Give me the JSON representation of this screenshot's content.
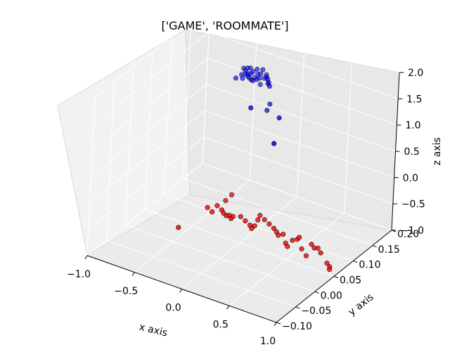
{
  "chart_data": {
    "type": "scatter",
    "projection": "3d",
    "title": "['GAME', 'ROOMMATE']",
    "xlabel": "x axis",
    "ylabel": "y axis",
    "zlabel": "z axis",
    "xlim": [
      -1.0,
      1.0
    ],
    "ylim": [
      -0.1,
      0.2
    ],
    "zlim": [
      -1.0,
      2.0
    ],
    "xticks": [
      "−1.0",
      "−0.5",
      "0.0",
      "0.5",
      "1.0"
    ],
    "yticks": [
      "−0.10",
      "−0.05",
      "0.00",
      "0.05",
      "0.10",
      "0.15",
      "0.20"
    ],
    "zticks": [
      "−1.0",
      "−0.5",
      "0.0",
      "0.5",
      "1.0",
      "1.5",
      "2.0"
    ],
    "grid": true,
    "legend": "none",
    "series": [
      {
        "color": "#0000ff",
        "points": [
          {
            "x": -0.62,
            "y": 0.2,
            "z": 1.05
          },
          {
            "x": -0.6,
            "y": 0.2,
            "z": 1.02
          },
          {
            "x": -0.58,
            "y": 0.2,
            "z": 1.08
          },
          {
            "x": -0.57,
            "y": 0.2,
            "z": 0.98
          },
          {
            "x": -0.55,
            "y": 0.2,
            "z": 1.1
          },
          {
            "x": -0.54,
            "y": 0.2,
            "z": 1.0
          },
          {
            "x": -0.52,
            "y": 0.2,
            "z": 1.05
          },
          {
            "x": -0.5,
            "y": 0.2,
            "z": 0.95
          },
          {
            "x": -0.48,
            "y": 0.2,
            "z": 1.12
          },
          {
            "x": -0.47,
            "y": 0.2,
            "z": 1.03
          },
          {
            "x": -0.45,
            "y": 0.2,
            "z": 0.97
          },
          {
            "x": -0.44,
            "y": 0.2,
            "z": 1.06
          },
          {
            "x": -0.42,
            "y": 0.2,
            "z": 1.15
          },
          {
            "x": -0.4,
            "y": 0.2,
            "z": 1.0
          },
          {
            "x": -0.38,
            "y": 0.2,
            "z": 1.08
          },
          {
            "x": -0.36,
            "y": 0.2,
            "z": 0.92
          },
          {
            "x": -0.6,
            "y": 0.19,
            "z": 1.0
          },
          {
            "x": -0.56,
            "y": 0.19,
            "z": 1.04
          },
          {
            "x": -0.52,
            "y": 0.19,
            "z": 0.99
          },
          {
            "x": -0.48,
            "y": 0.19,
            "z": 0.96
          },
          {
            "x": -0.44,
            "y": 0.19,
            "z": 1.01
          },
          {
            "x": -0.4,
            "y": 0.19,
            "z": 0.94
          },
          {
            "x": -0.62,
            "y": 0.18,
            "z": 0.98
          },
          {
            "x": -0.55,
            "y": 0.18,
            "z": 1.02
          },
          {
            "x": -0.5,
            "y": 0.18,
            "z": 1.1
          },
          {
            "x": -0.46,
            "y": 0.18,
            "z": 1.05
          },
          {
            "x": -0.3,
            "y": 0.18,
            "z": 1.2
          },
          {
            "x": -0.25,
            "y": 0.17,
            "z": 1.25
          },
          {
            "x": -0.2,
            "y": 0.16,
            "z": 1.28
          },
          {
            "x": -0.15,
            "y": 0.15,
            "z": 1.3
          },
          {
            "x": -0.1,
            "y": 0.14,
            "z": 1.05
          },
          {
            "x": -0.05,
            "y": 0.12,
            "z": 1.08
          },
          {
            "x": 0.05,
            "y": 0.05,
            "z": 1.6
          },
          {
            "x": 0.35,
            "y": 0.05,
            "z": 1.6
          },
          {
            "x": 0.5,
            "y": 0.0,
            "z": 1.5
          }
        ]
      },
      {
        "color": "#ff0000",
        "points": [
          {
            "x": -0.35,
            "y": 0.05,
            "z": -0.55
          },
          {
            "x": -0.3,
            "y": 0.05,
            "z": -0.6
          },
          {
            "x": -0.28,
            "y": 0.08,
            "z": -0.55
          },
          {
            "x": -0.25,
            "y": 0.05,
            "z": -0.45
          },
          {
            "x": -0.22,
            "y": 0.08,
            "z": -0.4
          },
          {
            "x": -0.2,
            "y": 0.05,
            "z": -0.5
          },
          {
            "x": -0.18,
            "y": 0.05,
            "z": -0.55
          },
          {
            "x": -0.15,
            "y": 0.05,
            "z": -0.58
          },
          {
            "x": -0.12,
            "y": 0.05,
            "z": -0.55
          },
          {
            "x": -0.1,
            "y": 0.05,
            "z": -0.6
          },
          {
            "x": -0.08,
            "y": 0.05,
            "z": -0.55
          },
          {
            "x": 0.0,
            "y": 0.05,
            "z": -0.5
          },
          {
            "x": 0.05,
            "y": 0.05,
            "z": -0.55
          },
          {
            "x": 0.1,
            "y": 0.05,
            "z": -0.6
          },
          {
            "x": 0.12,
            "y": 0.05,
            "z": -0.65
          },
          {
            "x": 0.15,
            "y": 0.05,
            "z": -0.58
          },
          {
            "x": 0.18,
            "y": 0.05,
            "z": -0.45
          },
          {
            "x": 0.2,
            "y": 0.05,
            "z": -0.35
          },
          {
            "x": 0.25,
            "y": 0.05,
            "z": -0.4
          },
          {
            "x": 0.3,
            "y": 0.05,
            "z": -0.45
          },
          {
            "x": 0.35,
            "y": 0.05,
            "z": -0.5
          },
          {
            "x": 0.38,
            "y": 0.05,
            "z": -0.55
          },
          {
            "x": 0.4,
            "y": 0.05,
            "z": -0.6
          },
          {
            "x": 0.45,
            "y": 0.05,
            "z": -0.55
          },
          {
            "x": 0.48,
            "y": 0.05,
            "z": -0.7
          },
          {
            "x": 0.5,
            "y": 0.05,
            "z": -0.75
          },
          {
            "x": 0.55,
            "y": 0.05,
            "z": -0.6
          },
          {
            "x": 0.6,
            "y": 0.05,
            "z": -0.55
          },
          {
            "x": 0.62,
            "y": 0.05,
            "z": -0.5
          },
          {
            "x": 0.65,
            "y": 0.05,
            "z": -0.7
          },
          {
            "x": 0.7,
            "y": 0.05,
            "z": -0.8
          },
          {
            "x": 0.75,
            "y": 0.05,
            "z": -0.55
          },
          {
            "x": 0.78,
            "y": 0.05,
            "z": -0.6
          },
          {
            "x": 0.82,
            "y": 0.05,
            "z": -0.58
          },
          {
            "x": 0.85,
            "y": 0.05,
            "z": -0.65
          },
          {
            "x": -0.45,
            "y": 0.0,
            "z": -0.7
          },
          {
            "x": 0.95,
            "y": 0.05,
            "z": -0.85
          },
          {
            "x": 0.95,
            "y": 0.05,
            "z": -0.9
          },
          {
            "x": 0.92,
            "y": 0.05,
            "z": -0.8
          }
        ]
      }
    ]
  }
}
